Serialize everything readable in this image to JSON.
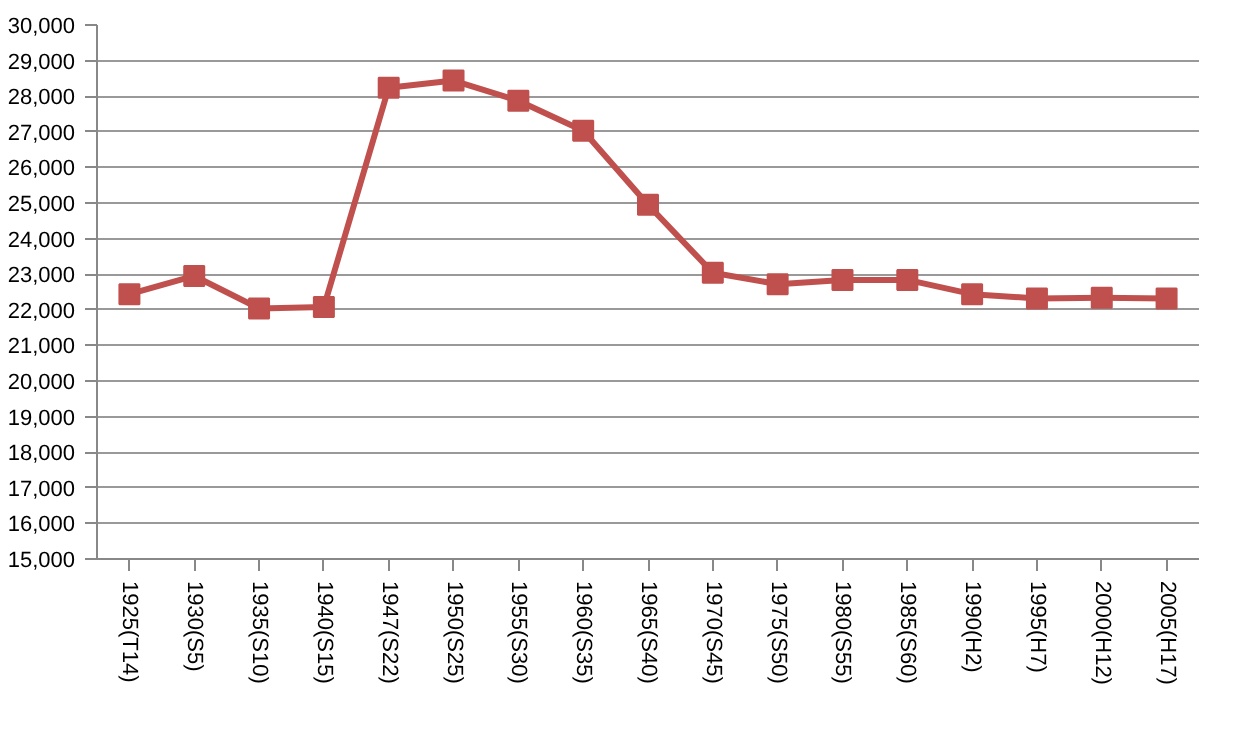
{
  "chart_data": {
    "type": "line",
    "categories": [
      "1925(T14)",
      "1930(S5)",
      "1935(S10)",
      "1940(S15)",
      "1947(S22)",
      "1950(S25)",
      "1955(S30)",
      "1960(S35)",
      "1965(S40)",
      "1970(S45)",
      "1975(S50)",
      "1980(S55)",
      "1985(S60)",
      "1990(H2)",
      "1995(H7)",
      "2000(H12)",
      "2005(H17)"
    ],
    "series": [
      {
        "color": "#c0504d",
        "values": [
          22440,
          22950,
          22040,
          22080,
          28240,
          28440,
          27870,
          27030,
          24950,
          23040,
          22720,
          22840,
          22840,
          22440,
          22320,
          22340,
          22320
        ]
      }
    ],
    "ylim": [
      15000,
      30000
    ],
    "yticks": [
      {
        "value": 15000,
        "label": "15,000"
      },
      {
        "value": 16000,
        "label": "16,000"
      },
      {
        "value": 17000,
        "label": "17,000"
      },
      {
        "value": 18000,
        "label": "18,000"
      },
      {
        "value": 19000,
        "label": "19,000"
      },
      {
        "value": 20000,
        "label": "20,000"
      },
      {
        "value": 21000,
        "label": "21,000"
      },
      {
        "value": 22000,
        "label": "22,000"
      },
      {
        "value": 23000,
        "label": "23,000"
      },
      {
        "value": 24000,
        "label": "24,000"
      },
      {
        "value": 25000,
        "label": "25,000"
      },
      {
        "value": 26000,
        "label": "26,000"
      },
      {
        "value": 27000,
        "label": "27,000"
      },
      {
        "value": 28000,
        "label": "28,000"
      },
      {
        "value": 29000,
        "label": "29,000"
      },
      {
        "value": 30000,
        "label": "30,000"
      }
    ],
    "grid": "y",
    "marker": "square",
    "line_style": "solid"
  }
}
